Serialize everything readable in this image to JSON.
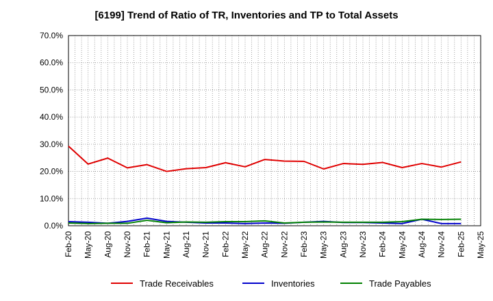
{
  "chart_data": {
    "type": "line",
    "title": "[6199]  Trend of Ratio of TR, Inventories and TP to Total Assets",
    "xlabel": "",
    "ylabel": "",
    "ylim": [
      0,
      70
    ],
    "yticks": [
      "0.0%",
      "10.0%",
      "20.0%",
      "30.0%",
      "40.0%",
      "50.0%",
      "60.0%",
      "70.0%"
    ],
    "xticks": [
      "Feb-20",
      "May-20",
      "Aug-20",
      "Nov-20",
      "Feb-21",
      "May-21",
      "Aug-21",
      "Nov-21",
      "Feb-22",
      "May-22",
      "Aug-22",
      "Nov-22",
      "Feb-23",
      "May-23",
      "Aug-23",
      "Nov-23",
      "Feb-24",
      "May-24",
      "Aug-24",
      "Nov-24",
      "Feb-25",
      "May-25"
    ],
    "grid": true,
    "legend_position": "bottom",
    "x": [
      "Feb-20",
      "May-20",
      "Aug-20",
      "Nov-20",
      "Feb-21",
      "May-21",
      "Aug-21",
      "Nov-21",
      "Feb-22",
      "May-22",
      "Aug-22",
      "Nov-22",
      "Feb-23",
      "May-23",
      "Aug-23",
      "Nov-23",
      "Feb-24",
      "May-24",
      "Aug-24",
      "Nov-24",
      "Feb-25"
    ],
    "series": [
      {
        "name": "Trade Receivables",
        "color": "#e00000",
        "values": [
          29.3,
          22.7,
          24.9,
          21.3,
          22.5,
          20.0,
          21.0,
          21.4,
          23.2,
          21.7,
          24.4,
          23.8,
          23.7,
          20.9,
          22.9,
          22.6,
          23.3,
          21.4,
          22.9,
          21.6,
          23.5
        ]
      },
      {
        "name": "Inventories",
        "color": "#0000cc",
        "values": [
          1.5,
          1.3,
          0.9,
          1.6,
          2.8,
          1.6,
          1.3,
          1.0,
          1.0,
          0.8,
          1.0,
          0.9,
          1.3,
          1.6,
          1.2,
          1.2,
          1.0,
          0.8,
          2.4,
          0.8,
          0.8
        ]
      },
      {
        "name": "Trade Payables",
        "color": "#008000",
        "values": [
          1.0,
          0.8,
          0.9,
          0.9,
          2.0,
          1.1,
          1.4,
          1.3,
          1.5,
          1.5,
          1.8,
          1.0,
          1.3,
          1.4,
          1.3,
          1.3,
          1.3,
          1.5,
          2.4,
          2.3,
          2.4
        ]
      }
    ]
  }
}
